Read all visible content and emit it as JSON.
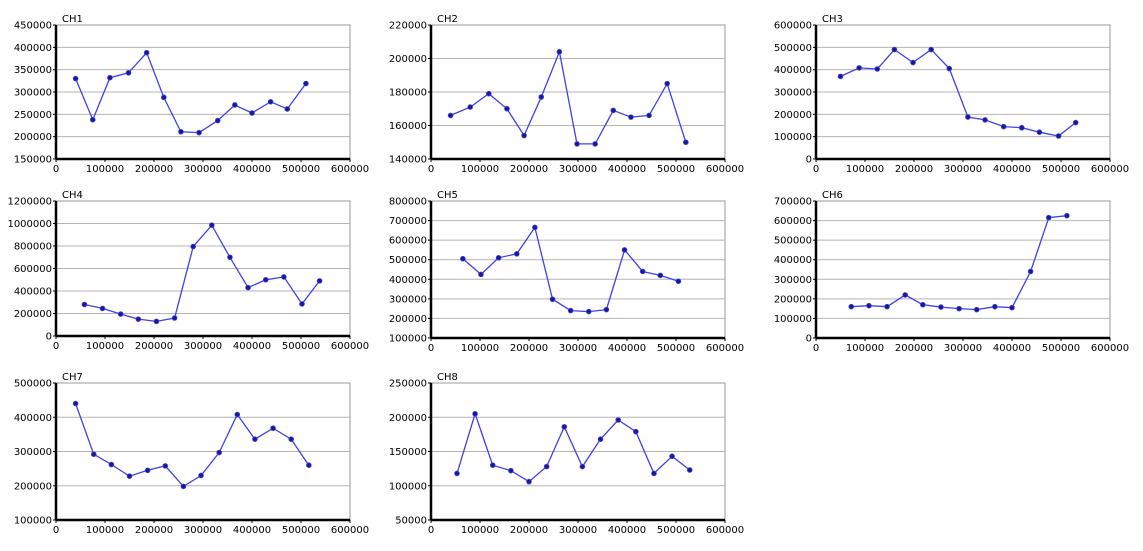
{
  "colors": {
    "series": "#4040ee",
    "marker": "#1a1a8a",
    "grid": "#b4b4b4",
    "axis": "#000000"
  },
  "chart_data": [
    {
      "type": "line",
      "title": "CH1",
      "x": [
        40000,
        75000,
        110000,
        148000,
        185000,
        220000,
        255000,
        292000,
        330000,
        365000,
        400000,
        438000,
        472000,
        510000
      ],
      "series": [
        {
          "name": "CH1",
          "values": [
            330000,
            238000,
            332000,
            343000,
            388000,
            288000,
            211000,
            209000,
            236000,
            271000,
            253000,
            278000,
            262000,
            319000
          ]
        }
      ],
      "xlim": [
        0,
        600000
      ],
      "ylim": [
        150000,
        450000
      ],
      "xticks": [
        "0",
        "100000",
        "200000",
        "300000",
        "400000",
        "500000",
        "600000"
      ],
      "yticks": [
        "150000",
        "200000",
        "250000",
        "300000",
        "350000",
        "400000",
        "450000"
      ],
      "grid": true
    },
    {
      "type": "line",
      "title": "CH2",
      "x": [
        40000,
        80000,
        118000,
        155000,
        190000,
        225000,
        262000,
        298000,
        335000,
        372000,
        408000,
        445000,
        482000,
        520000
      ],
      "series": [
        {
          "name": "CH2",
          "values": [
            166000,
            171000,
            179000,
            170000,
            154000,
            177000,
            204000,
            149000,
            149000,
            169000,
            165000,
            166000,
            185000,
            150000
          ]
        }
      ],
      "xlim": [
        0,
        600000
      ],
      "ylim": [
        140000,
        220000
      ],
      "xticks": [
        "0",
        "100000",
        "200000",
        "300000",
        "400000",
        "500000",
        "600000"
      ],
      "yticks": [
        "140000",
        "160000",
        "180000",
        "200000",
        "220000"
      ],
      "grid": true
    },
    {
      "type": "line",
      "title": "CH3",
      "x": [
        50000,
        88000,
        125000,
        160000,
        198000,
        235000,
        272000,
        310000,
        345000,
        383000,
        420000,
        456000,
        495000,
        530000
      ],
      "series": [
        {
          "name": "CH3",
          "values": [
            370000,
            408000,
            403000,
            490000,
            432000,
            490000,
            405000,
            188000,
            175000,
            145000,
            140000,
            120000,
            103000,
            163000
          ]
        }
      ],
      "xlim": [
        0,
        600000
      ],
      "ylim": [
        0,
        600000
      ],
      "xticks": [
        "0",
        "100000",
        "200000",
        "300000",
        "400000",
        "500000",
        "600000"
      ],
      "yticks": [
        "0",
        "100000",
        "200000",
        "300000",
        "400000",
        "500000",
        "600000"
      ],
      "grid": true
    },
    {
      "type": "line",
      "title": "CH4",
      "x": [
        58000,
        95000,
        132000,
        168000,
        205000,
        242000,
        280000,
        318000,
        355000,
        392000,
        428000,
        465000,
        502000,
        538000
      ],
      "series": [
        {
          "name": "CH4",
          "values": [
            280000,
            245000,
            195000,
            150000,
            130000,
            160000,
            795000,
            985000,
            700000,
            430000,
            500000,
            525000,
            285000,
            490000
          ]
        }
      ],
      "xlim": [
        0,
        600000
      ],
      "ylim": [
        0,
        1200000
      ],
      "xticks": [
        "0",
        "100000",
        "200000",
        "300000",
        "400000",
        "500000",
        "600000"
      ],
      "yticks": [
        "0",
        "200000",
        "400000",
        "600000",
        "800000",
        "1000000",
        "1200000"
      ],
      "grid": true
    },
    {
      "type": "line",
      "title": "CH5",
      "x": [
        65000,
        102000,
        138000,
        175000,
        212000,
        248000,
        285000,
        322000,
        358000,
        395000,
        432000,
        468000,
        505000
      ],
      "series": [
        {
          "name": "CH5",
          "values": [
            505000,
            425000,
            510000,
            530000,
            665000,
            298000,
            240000,
            235000,
            245000,
            550000,
            440000,
            420000,
            390000
          ]
        }
      ],
      "xlim": [
        0,
        600000
      ],
      "ylim": [
        100000,
        800000
      ],
      "xticks": [
        "0",
        "100000",
        "200000",
        "300000",
        "400000",
        "500000",
        "600000"
      ],
      "yticks": [
        "100000",
        "200000",
        "300000",
        "400000",
        "500000",
        "600000",
        "700000",
        "800000"
      ],
      "grid": true
    },
    {
      "type": "line",
      "title": "CH6",
      "x": [
        72000,
        108000,
        145000,
        182000,
        218000,
        255000,
        292000,
        328000,
        365000,
        400000,
        438000,
        475000,
        512000
      ],
      "series": [
        {
          "name": "CH6",
          "values": [
            160000,
            165000,
            160000,
            220000,
            170000,
            158000,
            150000,
            145000,
            160000,
            155000,
            340000,
            615000,
            625000
          ]
        }
      ],
      "xlim": [
        0,
        600000
      ],
      "ylim": [
        0,
        700000
      ],
      "xticks": [
        "0",
        "100000",
        "200000",
        "300000",
        "400000",
        "500000",
        "600000"
      ],
      "yticks": [
        "0",
        "100000",
        "200000",
        "300000",
        "400000",
        "500000",
        "600000",
        "700000"
      ],
      "grid": true
    },
    {
      "type": "line",
      "title": "CH7",
      "x": [
        40000,
        77000,
        113000,
        150000,
        187000,
        223000,
        260000,
        296000,
        333000,
        370000,
        406000,
        443000,
        480000,
        516000
      ],
      "series": [
        {
          "name": "CH7",
          "values": [
            440000,
            292000,
            262000,
            228000,
            245000,
            258000,
            198000,
            230000,
            297000,
            408000,
            336000,
            368000,
            336000,
            260000
          ]
        }
      ],
      "xlim": [
        0,
        600000
      ],
      "ylim": [
        100000,
        500000
      ],
      "xticks": [
        "0",
        "100000",
        "200000",
        "300000",
        "400000",
        "500000",
        "600000"
      ],
      "yticks": [
        "100000",
        "200000",
        "300000",
        "400000",
        "500000"
      ],
      "grid": true
    },
    {
      "type": "line",
      "title": "CH8",
      "x": [
        53000,
        90000,
        126000,
        163000,
        200000,
        236000,
        272000,
        309000,
        346000,
        382000,
        418000,
        455000,
        492000,
        528000
      ],
      "series": [
        {
          "name": "CH8",
          "values": [
            118000,
            205000,
            130000,
            122000,
            106000,
            128000,
            186000,
            128000,
            168000,
            196000,
            179000,
            118000,
            143000,
            123000
          ]
        }
      ],
      "xlim": [
        0,
        600000
      ],
      "ylim": [
        50000,
        250000
      ],
      "xticks": [
        "0",
        "100000",
        "200000",
        "300000",
        "400000",
        "500000",
        "600000"
      ],
      "yticks": [
        "50000",
        "100000",
        "150000",
        "200000",
        "250000"
      ],
      "grid": true
    }
  ]
}
